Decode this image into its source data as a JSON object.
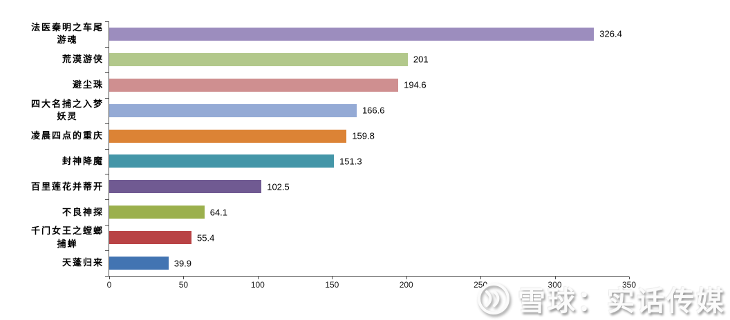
{
  "chart_data": {
    "type": "bar",
    "orientation": "horizontal",
    "title": "",
    "categories": [
      "法医秦明之车尾游魂",
      "荒漠游侠",
      "避尘珠",
      "四大名捕之入梦妖灵",
      "凌晨四点的重庆",
      "封神降魔",
      "百里莲花并蒂开",
      "不良神探",
      "千门女王之螳螂捕蝉",
      "天蓬归来"
    ],
    "values": [
      326.4,
      201,
      194.6,
      166.6,
      159.8,
      151.3,
      102.5,
      64.1,
      55.4,
      39.9
    ],
    "bar_colors": [
      "#9c8dbe",
      "#b2c88b",
      "#cf8f90",
      "#94aad5",
      "#dc8335",
      "#4496a8",
      "#705a92",
      "#9bb04d",
      "#b94345",
      "#4274b2"
    ],
    "xlabel": "",
    "ylabel": "",
    "xlim": [
      0,
      350
    ],
    "x_ticks": [
      0,
      50,
      100,
      150,
      200,
      250,
      300,
      350
    ],
    "grid": false,
    "legend": null,
    "axis_color": "#4a4a4a",
    "value_label_color": "#000000"
  },
  "watermark": {
    "text": "雪球：实话传媒",
    "logo": "xueqiu-snowball-icon"
  }
}
